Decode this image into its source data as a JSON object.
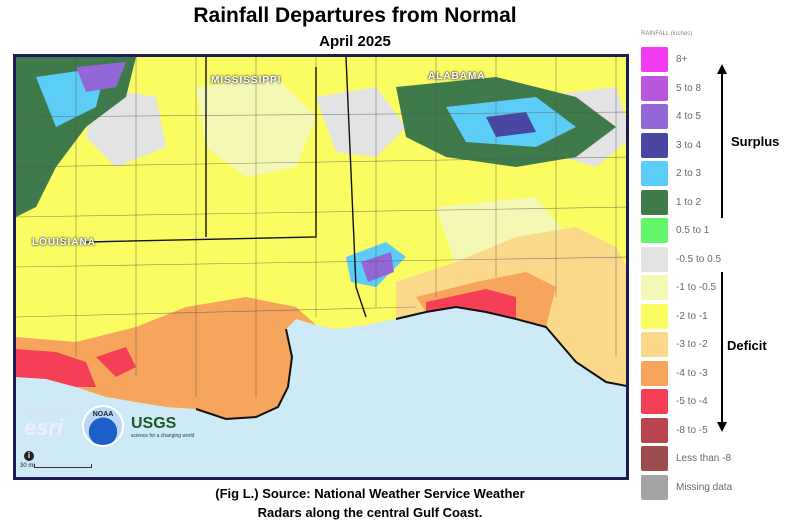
{
  "title": "Rainfall Departures from Normal",
  "subtitle": "April 2025",
  "map": {
    "state_labels": [
      "MISSISSIPPI",
      "ALABAMA",
      "LOUISIANA"
    ],
    "logos": {
      "esri": "esri",
      "esri_small": "POWERED BY",
      "noaa": "NOAA",
      "usgs": "USGS",
      "usgs_small": "science for a changing world"
    },
    "scale_label": "30 mi"
  },
  "legend": {
    "title": "RAINFALL (inches)",
    "items": [
      {
        "label": "8+",
        "color": "#f23af0"
      },
      {
        "label": "5 to 8",
        "color": "#b956dc"
      },
      {
        "label": "4 to 5",
        "color": "#9467d9"
      },
      {
        "label": "3 to 4",
        "color": "#4a46a3"
      },
      {
        "label": "2 to 3",
        "color": "#5bcdf7"
      },
      {
        "label": "1 to 2",
        "color": "#3f7a4b"
      },
      {
        "label": "0.5 to 1",
        "color": "#63f56a"
      },
      {
        "label": "-0.5 to 0.5",
        "color": "#e3e3e3"
      },
      {
        "label": "-1 to -0.5",
        "color": "#f4f8b4"
      },
      {
        "label": "-2 to -1",
        "color": "#fbfb62"
      },
      {
        "label": "-3 to -2",
        "color": "#fbd98a"
      },
      {
        "label": "-4 to -3",
        "color": "#f7a45c"
      },
      {
        "label": "-5 to -4",
        "color": "#f43f57"
      },
      {
        "label": "-8 to -5",
        "color": "#b8454f"
      },
      {
        "label": "Less than -8",
        "color": "#9d4d4d"
      },
      {
        "label": "Missing data",
        "color": "#a4a4a4"
      }
    ],
    "surplus_label": "Surplus",
    "deficit_label": "Deficit"
  },
  "caption": {
    "line1": "(Fig L.) Source: National Weather Service Weather",
    "line2": "Radars along the central Gulf Coast."
  }
}
